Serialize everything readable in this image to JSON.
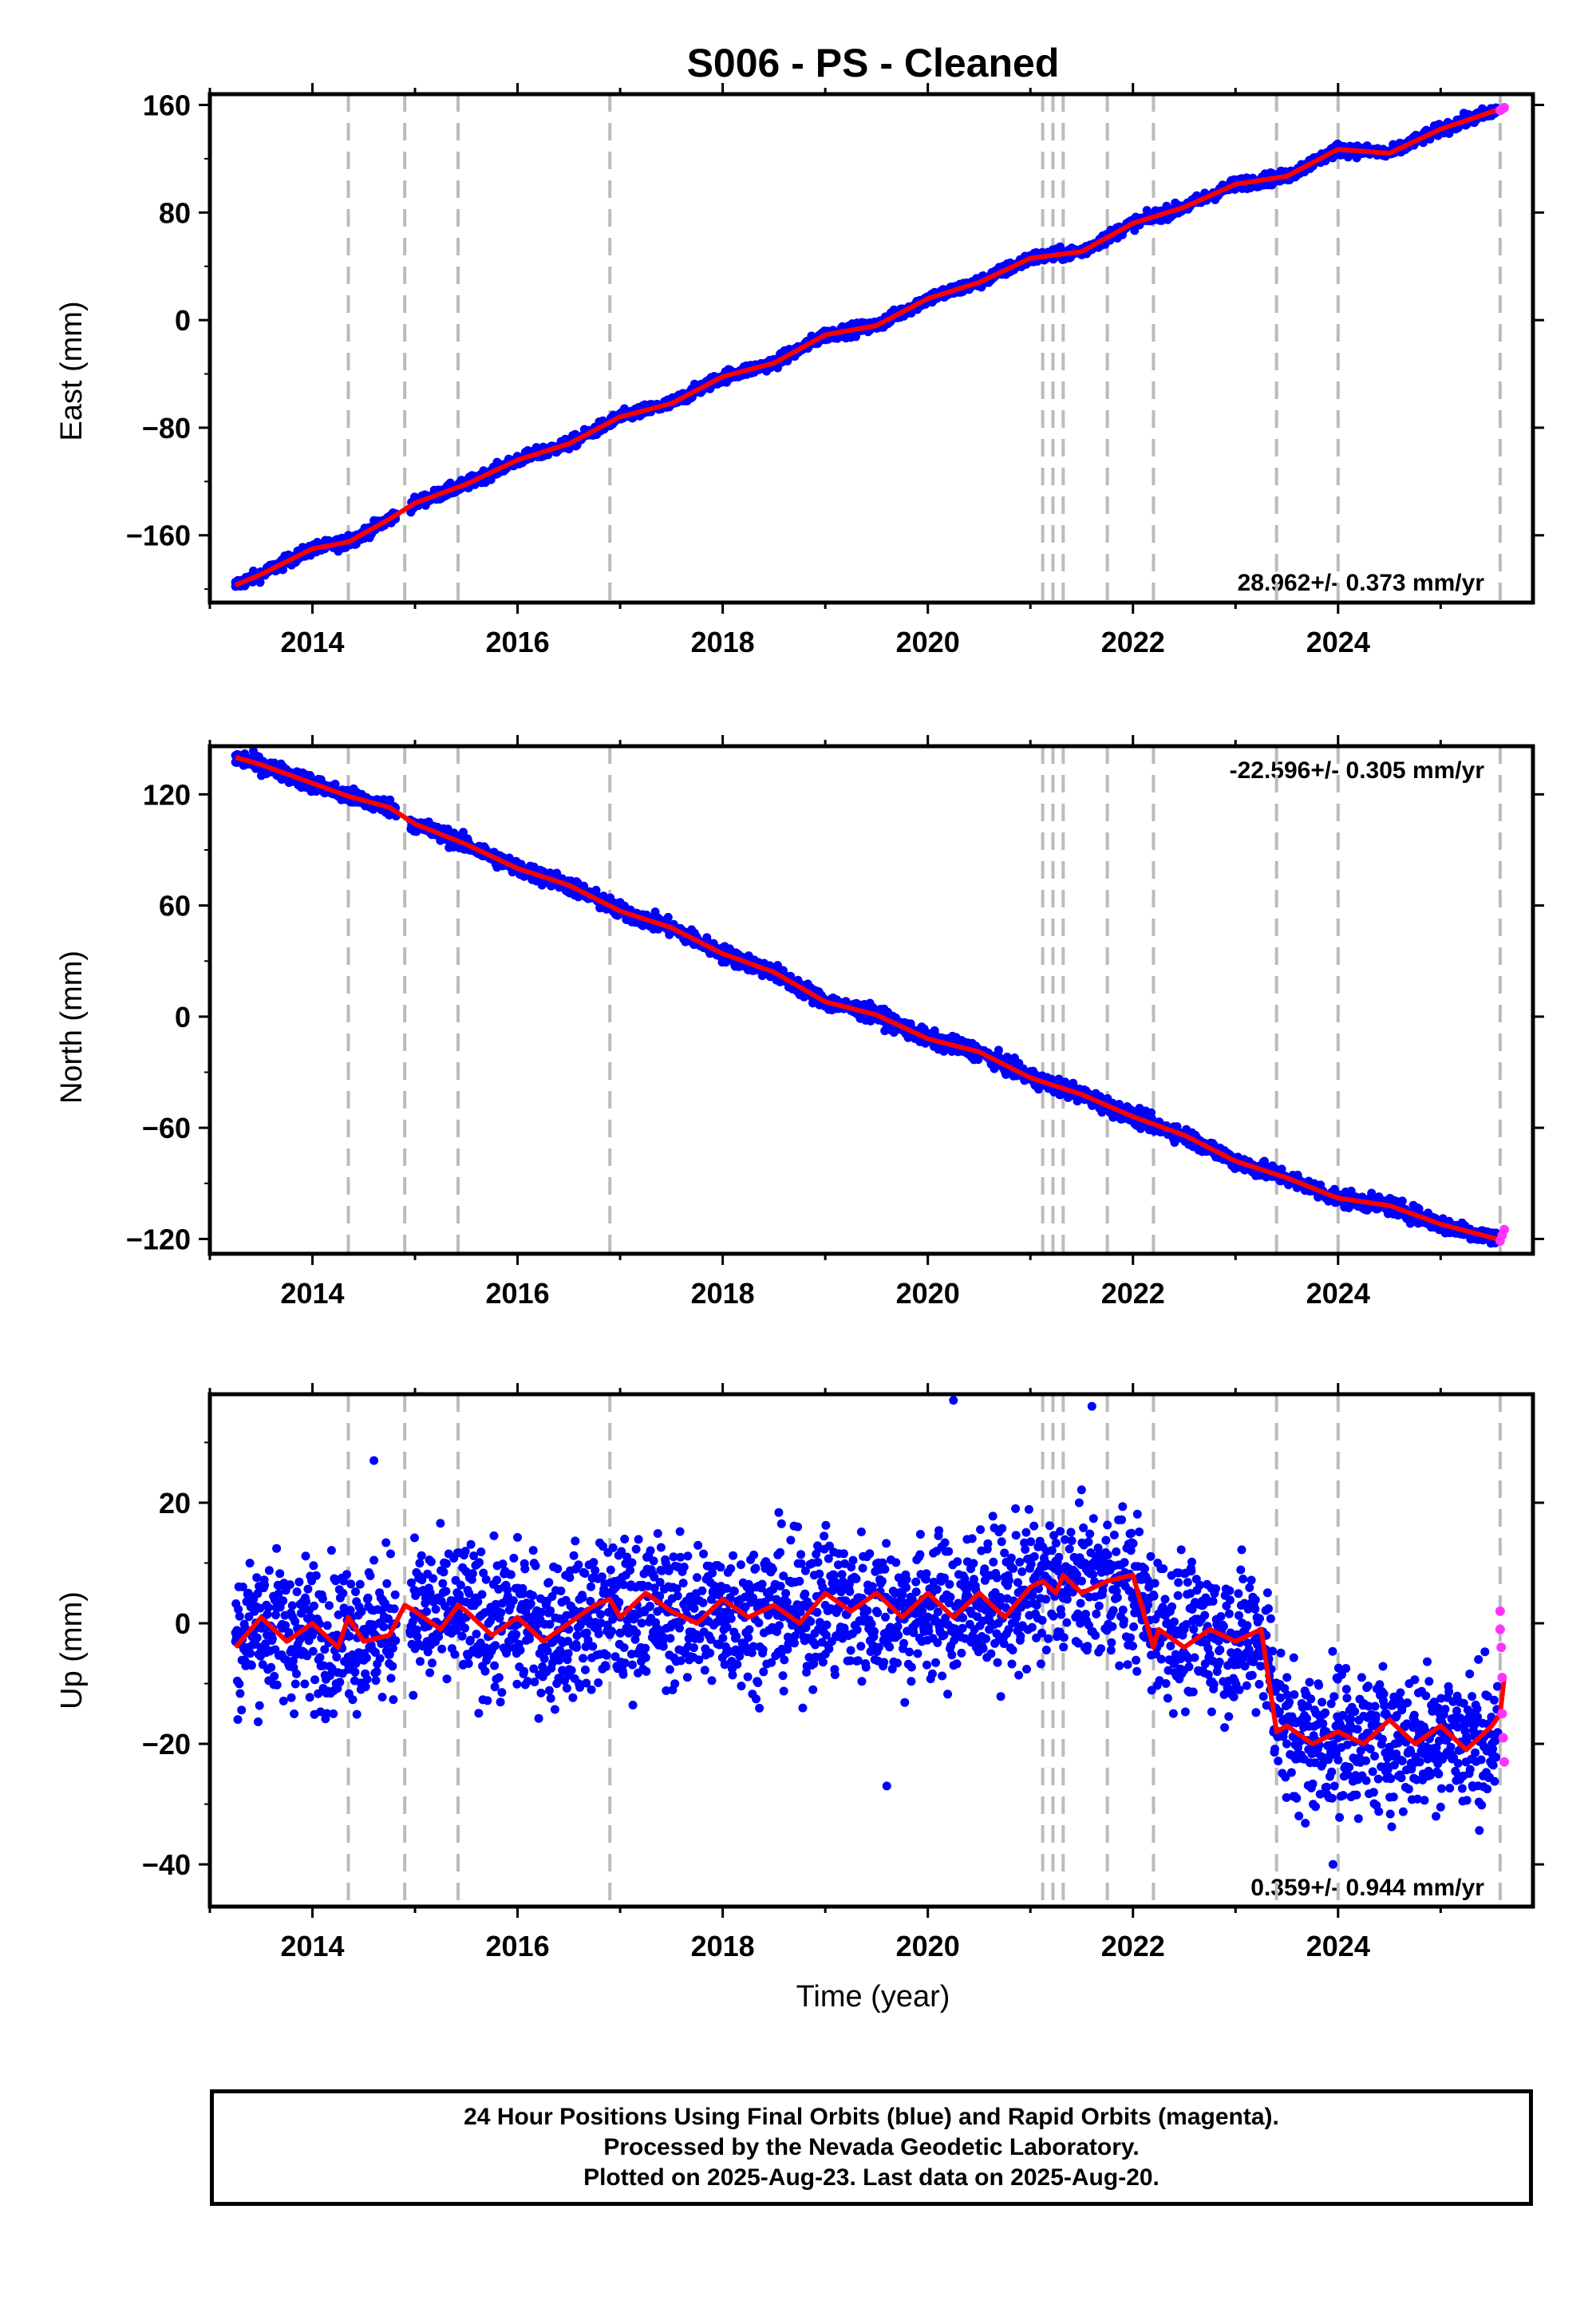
{
  "title": "S006  - PS - Cleaned",
  "xlabel": "Time (year)",
  "footer": {
    "line1": "24 Hour Positions Using Final Orbits (blue) and Rapid Orbits (magenta).",
    "line2": "Processed by the Nevada Geodetic Laboratory.",
    "line3": "Plotted on 2025-Aug-23. Last data on 2025-Aug-20."
  },
  "colors": {
    "final_orbits": "#0000ff",
    "rapid_orbits": "#ff33ff",
    "model": "#ff0000",
    "event_lines": "#bbbbbb"
  },
  "chart_data": [
    {
      "type": "scatter",
      "component": "East",
      "ylabel": "East (mm)",
      "rate_label": "28.962+/- 0.373 mm/yr",
      "rate_position": "bottom-right",
      "xlim": [
        2013.0,
        2025.9
      ],
      "ylim": [
        -210,
        168
      ],
      "yticks": [
        -160,
        -80,
        0,
        80,
        160
      ],
      "xticks": [
        2014,
        2016,
        2018,
        2020,
        2022,
        2024
      ],
      "series": [
        {
          "name": "Final Orbits",
          "x": [
            2013.25,
            2013.5,
            2014.0,
            2014.35,
            2014.75,
            2015.0,
            2015.5,
            2016.0,
            2016.5,
            2017.0,
            2017.5,
            2018.0,
            2018.5,
            2019.0,
            2019.5,
            2020.0,
            2020.5,
            2021.0,
            2021.5,
            2022.0,
            2022.5,
            2023.0,
            2023.5,
            2024.0,
            2024.5,
            2025.0,
            2025.5
          ],
          "y": [
            -198,
            -190,
            -170,
            -160,
            -146,
            -135,
            -120,
            -104,
            -90,
            -72,
            -62,
            -42,
            -30,
            -10,
            -3,
            17,
            29,
            47,
            53,
            72,
            85,
            102,
            108,
            127,
            124,
            142,
            153
          ]
        },
        {
          "name": "Rapid Orbits",
          "x": [
            2025.58,
            2025.6,
            2025.62
          ],
          "y": [
            156,
            157,
            158
          ]
        }
      ],
      "model": {
        "x": [
          2013.25,
          2013.5,
          2014.0,
          2014.35,
          2014.75,
          2015.0,
          2015.5,
          2016.0,
          2016.5,
          2017.0,
          2017.5,
          2018.0,
          2018.5,
          2019.0,
          2019.5,
          2020.0,
          2020.5,
          2021.0,
          2021.5,
          2022.0,
          2022.5,
          2023.0,
          2023.5,
          2024.0,
          2024.5,
          2025.0,
          2025.62
        ],
        "y": [
          -197,
          -189,
          -170,
          -165,
          -148,
          -136,
          -122,
          -104,
          -92,
          -72,
          -62,
          -42,
          -32,
          -11,
          -4,
          16,
          28,
          46,
          51,
          72,
          84,
          101,
          107,
          127,
          124,
          142,
          158
        ]
      },
      "events": [
        2014.35,
        2014.9,
        2015.42,
        2016.9,
        2021.12,
        2021.22,
        2021.32,
        2021.75,
        2022.2,
        2023.4,
        2024.0,
        2025.58
      ]
    },
    {
      "type": "scatter",
      "component": "North",
      "ylabel": "North (mm)",
      "rate_label": "-22.596+/- 0.305 mm/yr",
      "rate_position": "top-right",
      "xlim": [
        2013.0,
        2025.9
      ],
      "ylim": [
        -128,
        146
      ],
      "yticks": [
        -120,
        -60,
        0,
        60,
        120
      ],
      "xticks": [
        2014,
        2016,
        2018,
        2020,
        2022,
        2024
      ],
      "series": [
        {
          "name": "Final Orbits",
          "x": [
            2013.25,
            2013.5,
            2014.0,
            2014.35,
            2014.75,
            2015.0,
            2015.5,
            2016.0,
            2016.5,
            2017.0,
            2017.5,
            2018.0,
            2018.5,
            2019.0,
            2019.5,
            2020.0,
            2020.5,
            2021.0,
            2021.5,
            2022.0,
            2022.5,
            2023.0,
            2023.5,
            2024.0,
            2024.5,
            2025.0,
            2025.5
          ],
          "y": [
            141,
            137,
            126,
            118,
            114,
            104,
            93,
            80,
            70,
            57,
            48,
            34,
            23,
            8,
            1,
            -12,
            -18,
            -33,
            -42,
            -54,
            -64,
            -78,
            -87,
            -98,
            -102,
            -111,
            -119
          ]
        },
        {
          "name": "Rapid Orbits",
          "x": [
            2025.58,
            2025.6,
            2025.62
          ],
          "y": [
            -121,
            -118,
            -115
          ]
        }
      ],
      "model": {
        "x": [
          2013.25,
          2013.5,
          2014.0,
          2014.35,
          2014.75,
          2015.0,
          2015.5,
          2016.0,
          2016.5,
          2017.0,
          2017.5,
          2018.0,
          2018.5,
          2019.0,
          2019.5,
          2020.0,
          2020.5,
          2021.0,
          2021.5,
          2022.0,
          2022.5,
          2023.0,
          2023.5,
          2024.0,
          2024.5,
          2025.0,
          2025.62
        ],
        "y": [
          140,
          136,
          126,
          119,
          113,
          104,
          93,
          80,
          71,
          57,
          48,
          34,
          24,
          8,
          1,
          -12,
          -19,
          -33,
          -42,
          -54,
          -64,
          -78,
          -87,
          -98,
          -102,
          -112,
          -121
        ]
      },
      "events": [
        2014.35,
        2014.9,
        2015.42,
        2016.9,
        2021.12,
        2021.22,
        2021.32,
        2021.75,
        2022.2,
        2023.4,
        2024.0,
        2025.58
      ]
    },
    {
      "type": "scatter",
      "component": "Up",
      "ylabel": "Up (mm)",
      "rate_label": "0.359+/- 0.944 mm/yr",
      "rate_position": "bottom-right",
      "xlim": [
        2013.0,
        2025.9
      ],
      "ylim": [
        -47,
        38
      ],
      "yticks": [
        -40,
        -20,
        0,
        20
      ],
      "xticks": [
        2014,
        2016,
        2018,
        2020,
        2022,
        2024
      ],
      "series": [
        {
          "name": "Final Orbits",
          "x": [
            2013.25,
            2013.5,
            2014.0,
            2014.5,
            2015.0,
            2015.5,
            2016.0,
            2016.5,
            2017.0,
            2017.5,
            2018.0,
            2018.5,
            2019.0,
            2019.5,
            2020.0,
            2020.5,
            2021.0,
            2021.5,
            2022.0,
            2022.5,
            2023.0,
            2023.3,
            2023.5,
            2024.0,
            2024.5,
            2025.0,
            2025.5,
            2014.6,
            2020.25,
            2021.6,
            2019.6,
            2023.95
          ],
          "y": [
            -3,
            0,
            -2,
            -1,
            2,
            1,
            0,
            -1,
            1,
            2,
            1,
            2,
            3,
            2,
            1,
            4,
            5,
            7,
            5,
            -1,
            -3,
            -2,
            -20,
            -19,
            -21,
            -18,
            -20,
            27,
            37,
            36,
            -27,
            -40
          ]
        },
        {
          "name": "Rapid Orbits",
          "x": [
            2025.58,
            2025.58,
            2025.59,
            2025.6,
            2025.6,
            2025.61,
            2025.62
          ],
          "y": [
            2,
            -1,
            -4,
            -9,
            -15,
            -19,
            -23
          ]
        }
      ],
      "model": {
        "x": [
          2013.25,
          2013.5,
          2013.75,
          2014.0,
          2014.25,
          2014.35,
          2014.5,
          2014.75,
          2014.9,
          2015.0,
          2015.25,
          2015.42,
          2015.5,
          2015.75,
          2016.0,
          2016.25,
          2016.5,
          2016.75,
          2016.9,
          2017.0,
          2017.25,
          2017.5,
          2017.75,
          2018.0,
          2018.25,
          2018.5,
          2018.75,
          2019.0,
          2019.25,
          2019.5,
          2019.75,
          2020.0,
          2020.25,
          2020.5,
          2020.75,
          2021.0,
          2021.12,
          2021.25,
          2021.32,
          2021.5,
          2021.75,
          2022.0,
          2022.2,
          2022.25,
          2022.5,
          2022.75,
          2023.0,
          2023.25,
          2023.4,
          2023.5,
          2023.75,
          2024.0,
          2024.25,
          2024.5,
          2024.75,
          2025.0,
          2025.25,
          2025.5,
          2025.58,
          2025.62
        ],
        "y": [
          -4,
          1,
          -3,
          0,
          -4,
          1,
          -3,
          -2,
          3,
          2,
          -1,
          3,
          2,
          -2,
          1,
          -3,
          0,
          3,
          4,
          1,
          5,
          2,
          0,
          4,
          1,
          3,
          0,
          5,
          2,
          5,
          1,
          5,
          1,
          5,
          1,
          6,
          7,
          5,
          8,
          5,
          7,
          8,
          -4,
          -1,
          -4,
          -1,
          -3,
          -1,
          -18,
          -17,
          -20,
          -18,
          -20,
          -16,
          -20,
          -17,
          -21,
          -17,
          -15,
          -9
        ]
      },
      "events": [
        2014.35,
        2014.9,
        2015.42,
        2016.9,
        2021.12,
        2021.22,
        2021.32,
        2021.75,
        2022.2,
        2023.4,
        2024.0,
        2025.58
      ]
    }
  ]
}
